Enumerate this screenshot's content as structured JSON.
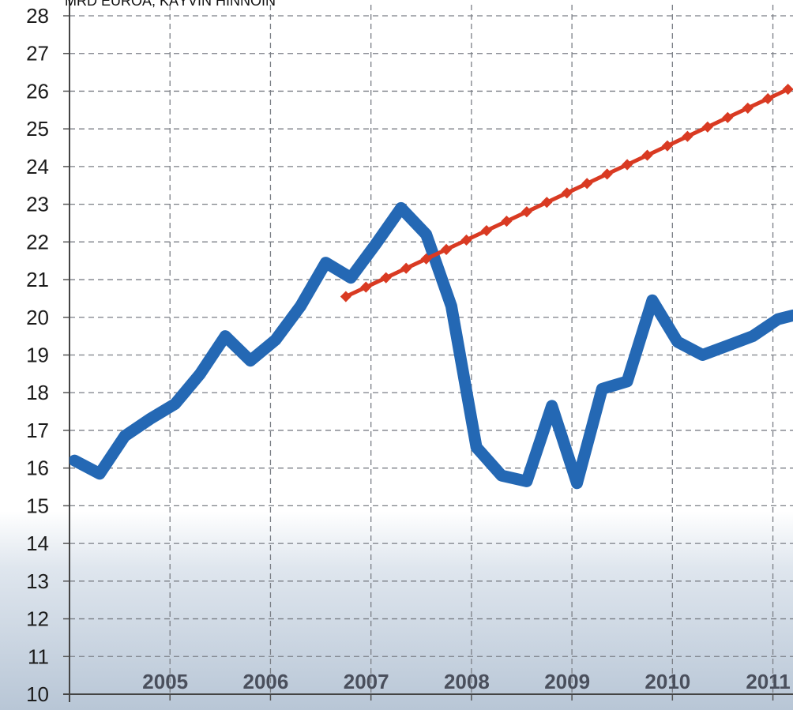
{
  "chart_data": {
    "type": "line",
    "unit_label": "MRD EUROA, KÄYVIN HINNOIN",
    "ylim": [
      10,
      28
    ],
    "yticks": [
      10,
      11,
      12,
      13,
      14,
      15,
      16,
      17,
      18,
      19,
      20,
      21,
      22,
      23,
      24,
      25,
      26,
      27,
      28
    ],
    "xlim": [
      2004.0,
      2011.2
    ],
    "xticks": [
      "2005",
      "2006",
      "2007",
      "2008",
      "2009",
      "2010",
      "2011"
    ],
    "grid": true,
    "series": [
      {
        "color": "#2468b4",
        "x": [
          2004.05,
          2004.3,
          2004.55,
          2004.8,
          2005.05,
          2005.3,
          2005.55,
          2005.8,
          2006.05,
          2006.3,
          2006.55,
          2006.8,
          2007.05,
          2007.3,
          2007.55,
          2007.8,
          2008.05,
          2008.3,
          2008.55,
          2008.8,
          2009.05,
          2009.3,
          2009.55,
          2009.8,
          2010.05,
          2010.3,
          2010.55,
          2010.8,
          2011.05,
          2011.2
        ],
        "values": [
          16.2,
          15.85,
          16.85,
          17.3,
          17.7,
          18.5,
          19.5,
          18.85,
          19.4,
          20.3,
          21.45,
          21.05,
          21.95,
          22.9,
          22.2,
          20.3,
          16.55,
          15.8,
          15.65,
          17.65,
          15.6,
          18.1,
          18.3,
          20.45,
          19.35,
          19.0,
          19.25,
          19.5,
          19.95,
          20.05
        ]
      },
      {
        "color": "#d93a22",
        "x": [
          2006.75,
          2006.95,
          2007.15,
          2007.35,
          2007.55,
          2007.75,
          2007.95,
          2008.15,
          2008.35,
          2008.55,
          2008.75,
          2008.95,
          2009.15,
          2009.35,
          2009.55,
          2009.75,
          2009.95,
          2010.15,
          2010.35,
          2010.55,
          2010.75,
          2010.95,
          2011.15
        ],
        "values": [
          20.55,
          20.8,
          21.05,
          21.3,
          21.55,
          21.8,
          22.05,
          22.3,
          22.55,
          22.8,
          23.05,
          23.3,
          23.55,
          23.8,
          24.05,
          24.3,
          24.55,
          24.8,
          25.05,
          25.3,
          25.55,
          25.8,
          26.05
        ]
      }
    ]
  }
}
